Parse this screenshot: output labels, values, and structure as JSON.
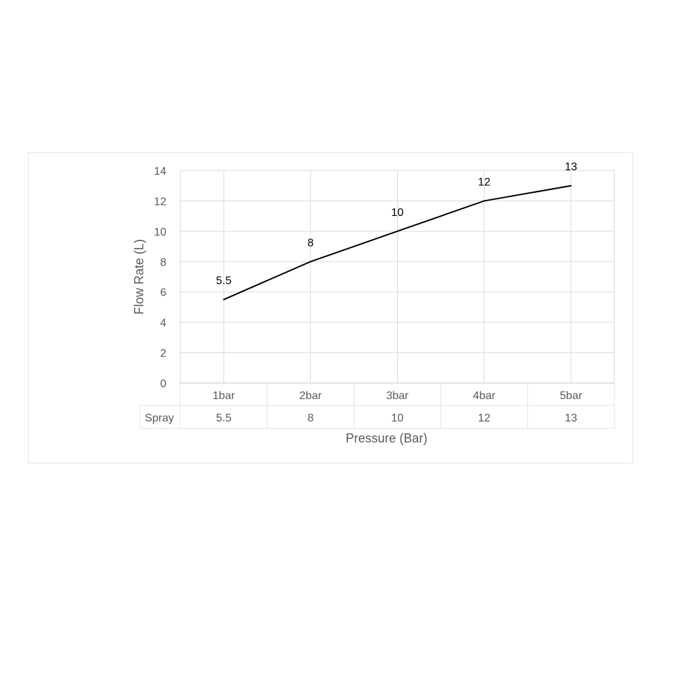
{
  "chart_data": {
    "type": "line",
    "categories": [
      "1bar",
      "2bar",
      "3bar",
      "4bar",
      "5bar"
    ],
    "series": [
      {
        "name": "Spray",
        "values": [
          5.5,
          8,
          10,
          12,
          13
        ],
        "color": "#000000"
      }
    ],
    "data_labels": [
      "5.5",
      "8",
      "10",
      "12",
      "13"
    ],
    "xlabel": "Pressure (Bar)",
    "ylabel": "Flow Rate (L)",
    "ylim": [
      0,
      14
    ],
    "yticks": [
      "0",
      "2",
      "4",
      "6",
      "8",
      "10",
      "12",
      "14"
    ],
    "grid": true,
    "legend": "none",
    "data_table": {
      "row_label": "Spray",
      "values": [
        "5.5",
        "8",
        "10",
        "12",
        "13"
      ]
    },
    "colors": {
      "grid": "#d9d9d9",
      "axis_text": "#595959",
      "line": "#000000"
    }
  }
}
